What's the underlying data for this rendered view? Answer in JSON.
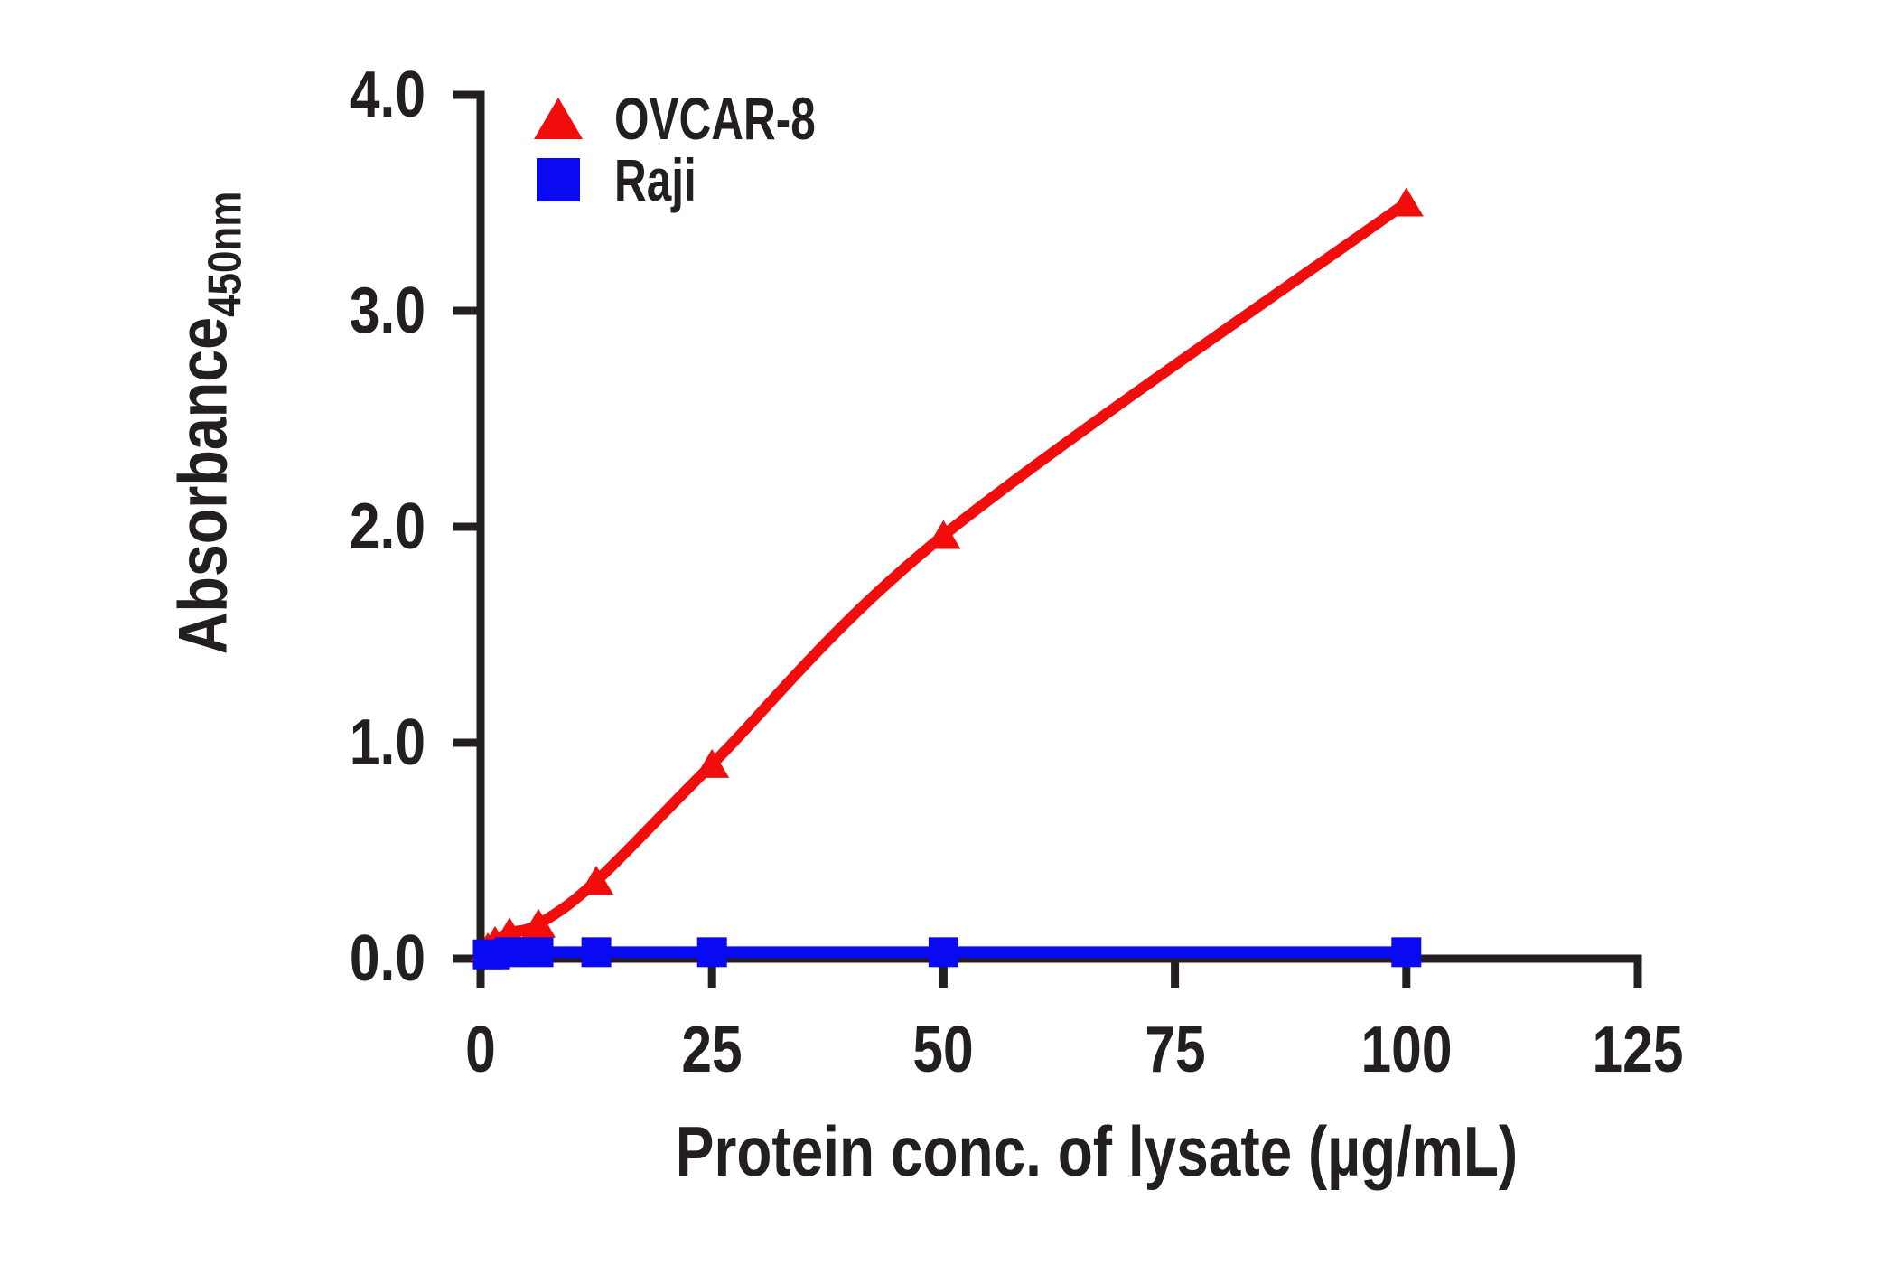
{
  "figure": {
    "background": "#ffffff",
    "text_color": "#231f20",
    "axis_color": "#231f20"
  },
  "legend": {
    "position": "top-left",
    "items": [
      {
        "label": "OVCAR-8",
        "marker": "triangle",
        "color": "#f20d0d"
      },
      {
        "label": "Raji",
        "marker": "square",
        "color": "#0a0af2"
      }
    ]
  },
  "axes": {
    "x": {
      "title": "Protein conc. of lysate (µg/mL)",
      "tick_labels": [
        "0",
        "25",
        "50",
        "75",
        "100",
        "125"
      ],
      "range": [
        0,
        125
      ]
    },
    "y": {
      "title": "Absorbance",
      "title_subscript": "450nm",
      "tick_labels": [
        "0.0",
        "1.0",
        "2.0",
        "3.0",
        "4.0"
      ],
      "range": [
        0,
        4
      ]
    }
  },
  "chart_data": {
    "type": "line",
    "title": "",
    "x": [
      0.78,
      1.56,
      3.13,
      6.25,
      12.5,
      25,
      50,
      100
    ],
    "series": [
      {
        "name": "OVCAR-8",
        "marker": "triangle",
        "color": "#f20d0d",
        "values": [
          0.05,
          0.08,
          0.12,
          0.16,
          0.36,
          0.9,
          1.96,
          3.5
        ]
      },
      {
        "name": "Raji",
        "marker": "square",
        "color": "#0a0af2",
        "values": [
          0.02,
          0.02,
          0.03,
          0.03,
          0.03,
          0.03,
          0.03,
          0.03
        ]
      }
    ],
    "xlabel": "Protein conc. of lysate (µg/mL)",
    "ylabel": "Absorbance 450nm",
    "xlim": [
      0,
      125
    ],
    "ylim": [
      0,
      4
    ],
    "xticks": [
      0,
      25,
      50,
      75,
      100,
      125
    ],
    "yticks": [
      0,
      1,
      2,
      3,
      4
    ],
    "grid": false,
    "legend_position": "top-left"
  }
}
